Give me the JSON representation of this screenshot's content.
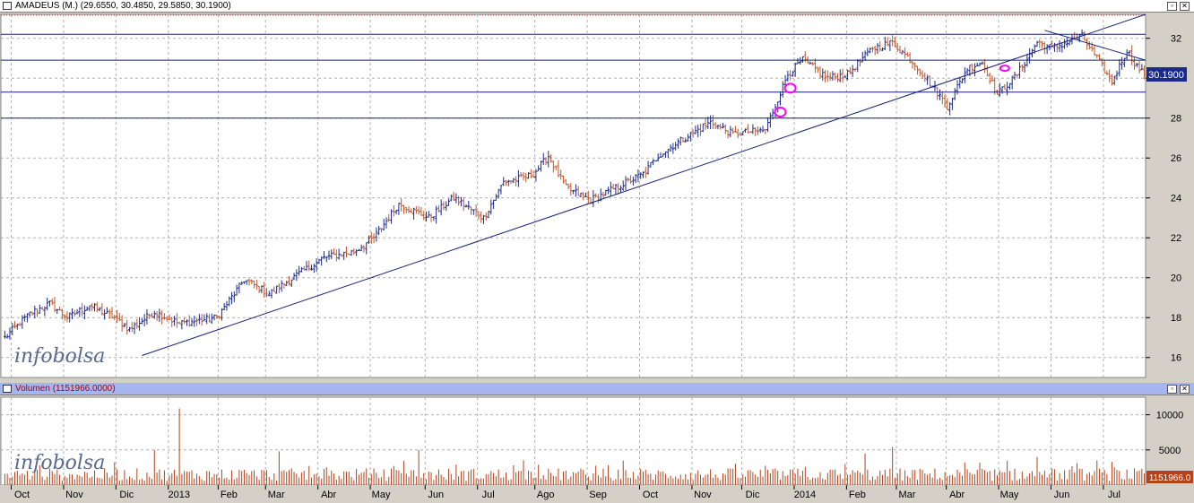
{
  "main_title": "AMADEUS (M.) (29.6550, 30.4850, 29.5850, 30.1900)",
  "vol_title": "Volumen (1151966.0000)",
  "watermark": "infobolsa",
  "colors": {
    "up": "#1a2a8a",
    "down": "#c0562a",
    "line": "#14207a",
    "marker": "#ff00ff",
    "vol": "#b5421a",
    "price_tag_bg": "#1a2a8a",
    "vol_tag_bg": "#b5421a"
  },
  "chart_data": [
    {
      "type": "candlestick",
      "title": "AMADEUS (M.)",
      "ylim": [
        15,
        33.2
      ],
      "y_ticks": [
        16,
        18,
        20,
        22,
        24,
        26,
        28,
        30,
        32
      ],
      "y_tick_labels": [
        "16",
        "18",
        "20",
        "22",
        "24",
        "26",
        "28",
        "",
        "32"
      ],
      "last_price_label": "30.1900",
      "last_price": 30.19,
      "x_labels": [
        "Oct",
        "Nov",
        "Dic",
        "2013",
        "Feb",
        "Mar",
        "Abr",
        "May",
        "Jun",
        "Jul",
        "Ago",
        "Sep",
        "Oct",
        "Nov",
        "Dic",
        "2014",
        "Feb",
        "Mar",
        "Abr",
        "May",
        "Jun",
        "Jul"
      ],
      "x_label_index": [
        4,
        25,
        46,
        67,
        87,
        106,
        127,
        148,
        170,
        191,
        214,
        235,
        256,
        277,
        297,
        318,
        339,
        359,
        379,
        400,
        421,
        442
      ],
      "bars_count": 458,
      "anchors": [
        [
          0,
          17.0
        ],
        [
          10,
          18.2
        ],
        [
          18,
          18.7
        ],
        [
          25,
          18.0
        ],
        [
          34,
          18.6
        ],
        [
          44,
          18.0
        ],
        [
          50,
          17.4
        ],
        [
          60,
          18.3
        ],
        [
          70,
          17.7
        ],
        [
          85,
          18.0
        ],
        [
          96,
          19.9
        ],
        [
          106,
          19.2
        ],
        [
          118,
          20.2
        ],
        [
          128,
          21.0
        ],
        [
          140,
          21.3
        ],
        [
          148,
          22.0
        ],
        [
          158,
          23.7
        ],
        [
          170,
          23.0
        ],
        [
          180,
          24.0
        ],
        [
          192,
          23.0
        ],
        [
          200,
          24.8
        ],
        [
          208,
          25.0
        ],
        [
          212,
          25.2
        ],
        [
          218,
          26.1
        ],
        [
          225,
          24.5
        ],
        [
          235,
          23.9
        ],
        [
          245,
          24.5
        ],
        [
          256,
          25.2
        ],
        [
          262,
          26.1
        ],
        [
          270,
          26.8
        ],
        [
          283,
          27.8
        ],
        [
          292,
          27.2
        ],
        [
          305,
          27.4
        ],
        [
          314,
          30.2
        ],
        [
          320,
          30.9
        ],
        [
          330,
          30.0
        ],
        [
          338,
          30.2
        ],
        [
          348,
          31.5
        ],
        [
          356,
          31.8
        ],
        [
          365,
          30.7
        ],
        [
          372,
          29.6
        ],
        [
          378,
          28.6
        ],
        [
          386,
          30.5
        ],
        [
          392,
          30.8
        ],
        [
          398,
          29.2
        ],
        [
          406,
          30.2
        ],
        [
          414,
          31.8
        ],
        [
          420,
          31.5
        ],
        [
          432,
          32.1
        ],
        [
          438,
          31.0
        ],
        [
          444,
          29.8
        ],
        [
          450,
          31.4
        ],
        [
          454,
          30.6
        ],
        [
          457,
          30.19
        ]
      ],
      "horizontal_levels": [
        32.2,
        30.9,
        29.3,
        28.0
      ],
      "trendlines": [
        [
          [
            55,
            16.1
          ],
          [
            458,
            33.2
          ]
        ],
        [
          [
            417,
            32.4
          ],
          [
            458,
            30.9
          ]
        ]
      ],
      "markers": [
        [
          311,
          28.3
        ],
        [
          315,
          29.5
        ],
        [
          401,
          30.5
        ]
      ]
    },
    {
      "type": "bar",
      "title": "Volumen",
      "ylim": [
        0,
        12500
      ],
      "y_ticks": [
        5000,
        10000
      ],
      "y_tick_labels": [
        "5000",
        "10000"
      ],
      "last_value_label": "1151966.0",
      "spikes": [
        [
          60,
          5000
        ],
        [
          70,
          10900
        ],
        [
          110,
          4800
        ],
        [
          166,
          5000
        ],
        [
          345,
          4500
        ],
        [
          356,
          5400
        ],
        [
          414,
          4000
        ],
        [
          438,
          3500
        ],
        [
          444,
          3300
        ]
      ]
    }
  ]
}
